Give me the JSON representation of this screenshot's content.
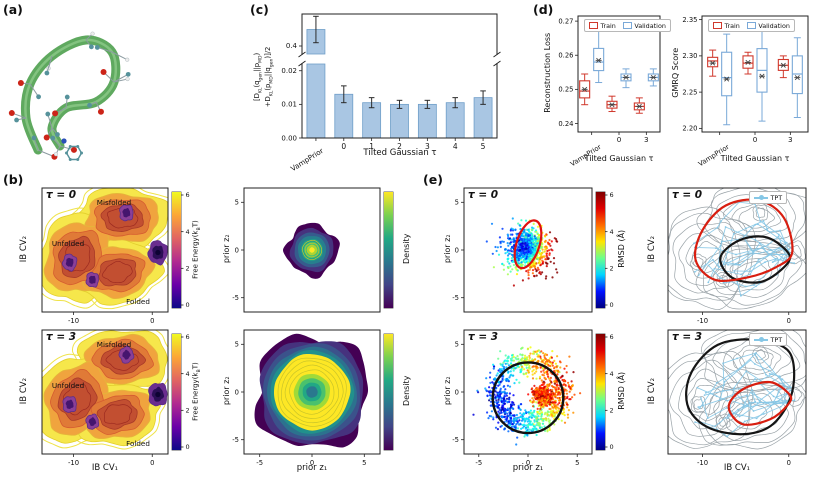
{
  "panel_labels": {
    "a": "(a)",
    "b": "(b)",
    "c": "(c)",
    "d": "(d)",
    "e": "(e)"
  },
  "colors": {
    "train": "#d0382c",
    "validation": "#7aa9d8",
    "bar_fill": "#a9c6e3",
    "bar_edge": "#6f9ec9",
    "tpt_line": "#86c7e6",
    "red_path": "#d81e10",
    "black_path": "#151515",
    "axis": "#222222"
  },
  "colormaps": {
    "free_energy": [
      "#0d0887",
      "#6a00a8",
      "#b12a90",
      "#e16462",
      "#fca636",
      "#f0f921"
    ],
    "viridis": [
      "#440154",
      "#414487",
      "#2a788e",
      "#22a884",
      "#7ad151",
      "#fde725"
    ],
    "jet": [
      "#00007f",
      "#0010ff",
      "#00d4ff",
      "#6aff8d",
      "#ffe600",
      "#ff6a00",
      "#e10000",
      "#7f0000"
    ]
  },
  "panel_a": {
    "ribbon": [
      [
        38,
        150
      ],
      [
        26,
        118
      ],
      [
        30,
        84
      ],
      [
        52,
        56
      ],
      [
        86,
        40
      ],
      [
        112,
        52
      ],
      [
        114,
        82
      ],
      [
        96,
        102
      ],
      [
        66,
        108
      ],
      [
        52,
        128
      ],
      [
        60,
        146
      ]
    ],
    "ribbon_color": "#5fa95f",
    "ribbon_highlight": "#93cf8e",
    "bond_color": "#8c9ba1",
    "atom_colors": {
      "carbon": "#56929b",
      "oxygen": "#cc2418",
      "hydrogen": "#ededed",
      "nitrogen": "#2b50b8"
    }
  },
  "fes_shape": {
    "lobes": [
      [
        0.64,
        0.24,
        0.3,
        0.2,
        0
      ],
      [
        0.28,
        0.56,
        0.25,
        0.3,
        0.5
      ],
      [
        0.6,
        0.68,
        0.28,
        0.2,
        -0.2
      ]
    ],
    "levels": [
      {
        "s": 1.22,
        "fill": "#f6e74b",
        "stroke": "#e2cf2d"
      },
      {
        "s": 0.98,
        "fill": "#f0a43e",
        "stroke": "#e5b63a"
      },
      {
        "s": 0.76,
        "fill": "#e07a37",
        "stroke": "#d55c30"
      },
      {
        "s": 0.55,
        "fill": "#c24f31",
        "stroke": "#a83a28"
      }
    ],
    "outer_ring_scale": 1.35,
    "outer_ring_color": "#efe34b",
    "inner_ring_scale": 0.4,
    "inner_ring_color": "#9c2a20",
    "minima": [
      {
        "c": [
          0.22,
          0.6
        ],
        "r": 0.055
      },
      {
        "c": [
          0.4,
          0.74
        ],
        "r": 0.05
      },
      {
        "c": [
          0.67,
          0.2
        ],
        "r": 0.055
      }
    ],
    "minima_fill": "#8a3f98",
    "minima_edge": "#5c2d8a",
    "minima_core": "#45156e",
    "folded": {
      "c": [
        0.92,
        0.52
      ],
      "r": 0.075,
      "fill": "#6a2d8f",
      "core": "#2a0f55",
      "dot": "#0d0333"
    },
    "gray_stroke": "#9aa3a8"
  },
  "density_rings": {
    "peak": [
      [
        2.7,
        "#440154"
      ],
      [
        2.25,
        "#46327e"
      ],
      [
        1.85,
        "#365c8d"
      ],
      [
        1.5,
        "#277f8e"
      ],
      [
        1.15,
        "#1fa187"
      ],
      [
        0.85,
        "#4ac16d"
      ],
      [
        0.55,
        "#a0da39"
      ],
      [
        0.28,
        "#fde725"
      ]
    ],
    "peak_lines": [
      0.45,
      0.72,
      1.0
    ],
    "ring": [
      [
        6.0,
        "#440154"
      ],
      [
        5.55,
        "#46327e"
      ],
      [
        5.1,
        "#3b528b"
      ],
      [
        4.65,
        "#2c728e"
      ],
      [
        4.3,
        "#21918c"
      ],
      [
        3.95,
        "#fde725"
      ],
      [
        1.9,
        "#a0da39"
      ],
      [
        1.45,
        "#4ac16d"
      ],
      [
        1.0,
        "#22a884"
      ],
      [
        0.6,
        "#2a788e"
      ]
    ],
    "ring_lines": [
      2.3,
      2.75,
      3.2,
      3.6
    ]
  },
  "chart_data": [
    {
      "id": "symmetrized-kl-bar",
      "type": "bar",
      "categories": [
        "VampPrior",
        "0",
        "1",
        "2",
        "3",
        "4",
        "5"
      ],
      "values": [
        0.415,
        0.013,
        0.0105,
        0.01,
        0.01,
        0.0105,
        0.012
      ],
      "errors": [
        0.012,
        0.0025,
        0.0015,
        0.0012,
        0.0012,
        0.0015,
        0.002
      ],
      "xlabel": "Tilted Gaussian τ",
      "ylabel_text": "[D_KL(q_gen||p_MD) + D_KL(p_MD||q_gen)]/2",
      "ylabel_lines": [
        [
          {
            "t": "[D"
          },
          {
            "t": "KL",
            "s": 1
          },
          {
            "t": "(q"
          },
          {
            "t": "gen",
            "s": 1
          },
          {
            "t": "||p"
          },
          {
            "t": "MD",
            "s": 1
          },
          {
            "t": ")"
          }
        ],
        [
          {
            "t": "+D"
          },
          {
            "t": "KL",
            "s": 1
          },
          {
            "t": "(p"
          },
          {
            "t": "MD",
            "s": 1
          },
          {
            "t": "||q"
          },
          {
            "t": "gen",
            "s": 1
          },
          {
            "t": ")]/2"
          }
        ]
      ],
      "yticks_lower": [
        "0.00",
        "0.01",
        "0.02"
      ],
      "ytick_upper": "0.4",
      "ylim_lower": [
        0,
        0.022
      ],
      "broken_axis": true
    },
    {
      "id": "reconstruction-loss-box",
      "type": "boxplot",
      "ylabel": "Reconstruction Loss",
      "xlabel": "Tilted Gaussian τ",
      "categories": [
        "VampPrior",
        "0",
        "3"
      ],
      "ylim": [
        0.2375,
        0.2715
      ],
      "yticks": [
        "0.24",
        "0.25",
        "0.26",
        "0.27"
      ],
      "legend": [
        "Train",
        "Validation"
      ],
      "series": [
        {
          "name": "Train",
          "boxes": [
            {
              "lo": 0.2455,
              "q1": 0.2475,
              "med": 0.2495,
              "q3": 0.2525,
              "hi": 0.2545,
              "mean": 0.25
            },
            {
              "lo": 0.2435,
              "q1": 0.2445,
              "med": 0.2455,
              "q3": 0.2465,
              "hi": 0.248,
              "mean": 0.2455
            },
            {
              "lo": 0.243,
              "q1": 0.244,
              "med": 0.245,
              "q3": 0.246,
              "hi": 0.2475,
              "mean": 0.245
            }
          ]
        },
        {
          "name": "Validation",
          "boxes": [
            {
              "lo": 0.252,
              "q1": 0.2555,
              "med": 0.258,
              "q3": 0.262,
              "hi": 0.268,
              "mean": 0.2585
            },
            {
              "lo": 0.2505,
              "q1": 0.2525,
              "med": 0.2535,
              "q3": 0.2545,
              "hi": 0.256,
              "mean": 0.2535
            },
            {
              "lo": 0.251,
              "q1": 0.2525,
              "med": 0.2535,
              "q3": 0.2545,
              "hi": 0.256,
              "mean": 0.2535
            }
          ]
        }
      ]
    },
    {
      "id": "gmrq-box",
      "type": "boxplot",
      "ylabel": "GMRQ Score",
      "xlabel": "Tilted Gaussian τ",
      "categories": [
        "VampPrior",
        "0",
        "3"
      ],
      "ylim": [
        2.195,
        2.355
      ],
      "yticks": [
        "2.20",
        "2.25",
        "2.30",
        "2.35"
      ],
      "legend": [
        "Train",
        "Validation"
      ],
      "series": [
        {
          "name": "Train",
          "boxes": [
            {
              "lo": 2.272,
              "q1": 2.285,
              "med": 2.293,
              "q3": 2.298,
              "hi": 2.308,
              "mean": 2.29
            },
            {
              "lo": 2.275,
              "q1": 2.283,
              "med": 2.29,
              "q3": 2.3,
              "hi": 2.305,
              "mean": 2.291
            },
            {
              "lo": 2.27,
              "q1": 2.28,
              "med": 2.287,
              "q3": 2.295,
              "hi": 2.3,
              "mean": 2.287
            }
          ]
        },
        {
          "name": "Validation",
          "boxes": [
            {
              "lo": 2.205,
              "q1": 2.245,
              "med": 2.27,
              "q3": 2.305,
              "hi": 2.33,
              "mean": 2.268
            },
            {
              "lo": 2.21,
              "q1": 2.25,
              "med": 2.28,
              "q3": 2.31,
              "hi": 2.335,
              "mean": 2.272
            },
            {
              "lo": 2.215,
              "q1": 2.248,
              "med": 2.275,
              "q3": 2.3,
              "hi": 2.325,
              "mean": 2.27
            }
          ]
        }
      ]
    },
    {
      "id": "fes-tau0",
      "type": "contour",
      "tau": "τ = 0",
      "ylabel": "IB CV₂",
      "xlim": [
        -14,
        2
      ],
      "xticks": [
        "-10",
        "0"
      ],
      "annotations": [
        "Misfolded",
        "Unfolded",
        "Folded"
      ],
      "colorbar_ticks": [
        "6",
        "4",
        "2",
        "0"
      ],
      "colorbar_label_text": "Free Energy(k_BT)",
      "colorbar_label_parts": [
        {
          "t": "Free Energy("
        },
        {
          "t": "k"
        },
        {
          "t": "B",
          "s": 1
        },
        {
          "t": "T)"
        }
      ]
    },
    {
      "id": "fes-tau3",
      "type": "contour",
      "tau": "τ = 3",
      "ylabel": "IB CV₂",
      "xlabel": "IB CV₁",
      "xlim": [
        -14,
        2
      ],
      "xticks": [
        "-10",
        "0"
      ],
      "annotations": [
        "Misfolded",
        "Unfolded",
        "Folded"
      ],
      "colorbar_ticks": [
        "6",
        "4",
        "2",
        "0"
      ],
      "colorbar_label_text": "Free Energy(k_BT)",
      "colorbar_label_parts": [
        {
          "t": "Free Energy("
        },
        {
          "t": "k"
        },
        {
          "t": "B",
          "s": 1
        },
        {
          "t": "T)"
        }
      ]
    },
    {
      "id": "prior-density-tau0",
      "type": "heatmap",
      "mode": "peak",
      "ylabel": "prior z₂",
      "xlim": [
        -6.5,
        6.5
      ],
      "ylim": [
        -6.5,
        6.5
      ],
      "yticks": [
        "5",
        "0",
        "-5"
      ],
      "colorbar_label": "Density",
      "distribution": {
        "shape": "gaussian-peak",
        "center": [
          0,
          0
        ],
        "sigma": 1.0
      }
    },
    {
      "id": "prior-density-tau3",
      "type": "heatmap",
      "mode": "ring",
      "xlabel": "prior z₁",
      "ylabel": "prior z₂",
      "xlim": [
        -6.5,
        6.5
      ],
      "ylim": [
        -6.5,
        6.5
      ],
      "xticks": [
        "-5",
        "0",
        "5"
      ],
      "yticks": [
        "5",
        "0",
        "-5"
      ],
      "colorbar_label": "Density",
      "distribution": {
        "shape": "ring",
        "radius": 3.3,
        "width": 1.0
      }
    },
    {
      "id": "latent-rmsd-tau0",
      "type": "scatter",
      "tau": "τ = 0",
      "ylabel": "prior z₂",
      "xlim": [
        -6.5,
        6.5
      ],
      "ylim": [
        -6.5,
        6.5
      ],
      "yticks": [
        "5",
        "0",
        "-5"
      ],
      "colorbar_label": "RMSD (Å)",
      "colorbar_ticks": [
        "6",
        "4",
        "2",
        "0"
      ],
      "n": 900,
      "cloud": {
        "shape": "gaussian",
        "sigma": 1.15
      },
      "overlay": {
        "shape": "ellipse",
        "center": [
          0,
          0.6
        ],
        "rx": 1.2,
        "ry": 2.6,
        "angle": 18,
        "color": "#e01010"
      }
    },
    {
      "id": "latent-rmsd-tau3",
      "type": "scatter",
      "tau": "τ = 3",
      "xlabel": "prior z₁",
      "ylabel": "prior z₂",
      "xlim": [
        -6.5,
        6.5
      ],
      "ylim": [
        -6.5,
        6.5
      ],
      "xticks": [
        "-5",
        "0",
        "5"
      ],
      "yticks": [
        "5",
        "0",
        "-5"
      ],
      "colorbar_label": "RMSD (Å)",
      "colorbar_ticks": [
        "6",
        "4",
        "2",
        "0"
      ],
      "n": 1050,
      "cloud": {
        "shape": "ring",
        "radius": 3.3,
        "sigma": 0.75
      },
      "cluster": {
        "center": [
          1.6,
          -0.4
        ],
        "sigma": 0.55,
        "n": 380
      },
      "overlay": {
        "shape": "circle",
        "center": [
          0,
          -0.6
        ],
        "r": 3.7,
        "color": "#111111"
      }
    },
    {
      "id": "tpt-tau0",
      "type": "contour-paths",
      "tau": "τ = 0",
      "legend": "TPT",
      "ylabel": "IB CV₂",
      "xlim": [
        -14,
        2
      ],
      "xticks": [
        "-10",
        "0"
      ],
      "red_path": [
        [
          0.9,
          0.52
        ],
        [
          0.84,
          0.24
        ],
        [
          0.66,
          0.1
        ],
        [
          0.42,
          0.14
        ],
        [
          0.25,
          0.34
        ],
        [
          0.2,
          0.58
        ],
        [
          0.34,
          0.74
        ],
        [
          0.58,
          0.72
        ],
        [
          0.78,
          0.64
        ]
      ],
      "black_path": [
        [
          0.88,
          0.54
        ],
        [
          0.72,
          0.4
        ],
        [
          0.52,
          0.42
        ],
        [
          0.38,
          0.56
        ],
        [
          0.46,
          0.72
        ],
        [
          0.66,
          0.76
        ],
        [
          0.82,
          0.66
        ]
      ]
    },
    {
      "id": "tpt-tau3",
      "type": "contour-paths",
      "tau": "τ = 3",
      "legend": "TPT",
      "xlabel": "IB CV₁",
      "ylabel": "IB CV₂",
      "xlim": [
        -14,
        2
      ],
      "xticks": [
        "-10",
        "0"
      ],
      "black_path": [
        [
          0.9,
          0.5
        ],
        [
          0.88,
          0.18
        ],
        [
          0.64,
          0.08
        ],
        [
          0.36,
          0.12
        ],
        [
          0.17,
          0.34
        ],
        [
          0.14,
          0.6
        ],
        [
          0.28,
          0.78
        ],
        [
          0.54,
          0.84
        ],
        [
          0.76,
          0.76
        ]
      ],
      "red_path": [
        [
          0.88,
          0.52
        ],
        [
          0.74,
          0.42
        ],
        [
          0.54,
          0.48
        ],
        [
          0.44,
          0.62
        ],
        [
          0.54,
          0.76
        ],
        [
          0.74,
          0.72
        ],
        [
          0.87,
          0.6
        ]
      ]
    }
  ]
}
